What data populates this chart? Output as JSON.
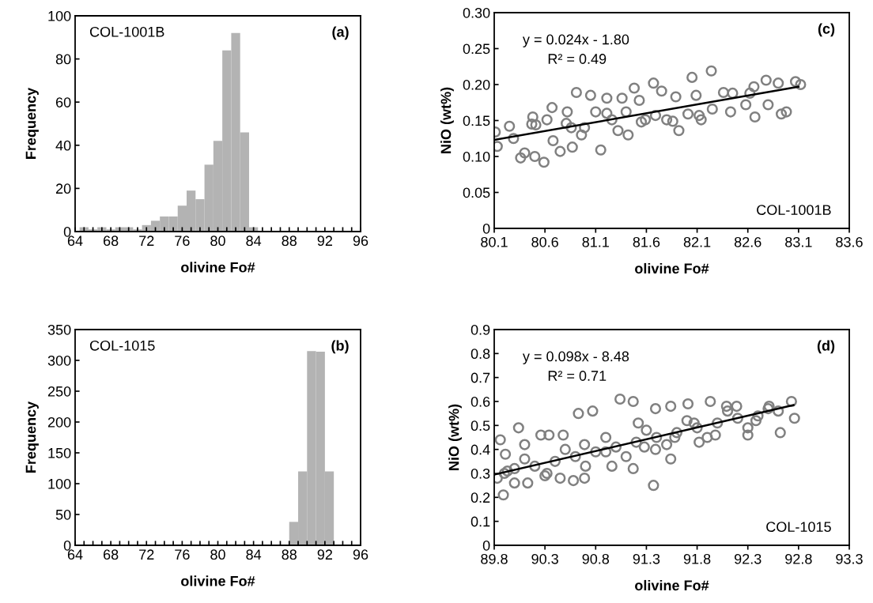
{
  "chart_data": [
    {
      "type": "histogram",
      "xlabel": "olivine Fo#",
      "ylabel": "Frequency",
      "annotations": [
        "COL-1001B",
        "(a)"
      ],
      "color": "#b3b3b3",
      "bins": [
        64.5,
        65.5,
        66.5,
        67.5,
        68.5,
        69.5,
        70.5,
        71.5,
        72.5,
        73.5,
        74.5,
        75.5,
        76.5,
        77.5,
        78.5,
        79.5,
        80.5,
        81.5,
        82.5,
        83.5,
        84.5
      ],
      "values": [
        2,
        1,
        2,
        1,
        2,
        2,
        1,
        3,
        5,
        7,
        7,
        12,
        19,
        15,
        31,
        42,
        84,
        92,
        46,
        2
      ],
      "xlim": [
        64,
        96
      ],
      "ylim": [
        0,
        100
      ],
      "yticks": [
        0,
        20,
        40,
        60,
        80,
        100
      ],
      "xticks": [
        64,
        {
          "value": 65,
          "label": null
        },
        {
          "value": 66,
          "label": null
        },
        {
          "value": 67,
          "label": null
        },
        68,
        {
          "value": 69,
          "label": null
        },
        {
          "value": 70,
          "label": null
        },
        {
          "value": 71,
          "label": null
        },
        72,
        {
          "value": 73,
          "label": null
        },
        {
          "value": 74,
          "label": null
        },
        {
          "value": 75,
          "label": null
        },
        76,
        {
          "value": 77,
          "label": null
        },
        {
          "value": 78,
          "label": null
        },
        {
          "value": 79,
          "label": null
        },
        80,
        {
          "value": 81,
          "label": null
        },
        {
          "value": 82,
          "label": null
        },
        {
          "value": 83,
          "label": null
        },
        84,
        {
          "value": 85,
          "label": null
        },
        {
          "value": 86,
          "label": null
        },
        {
          "value": 87,
          "label": null
        },
        88,
        {
          "value": 89,
          "label": null
        },
        {
          "value": 90,
          "label": null
        },
        {
          "value": 91,
          "label": null
        },
        92,
        {
          "value": 93,
          "label": null
        },
        {
          "value": 94,
          "label": null
        },
        {
          "value": 95,
          "label": null
        },
        96
      ]
    },
    {
      "type": "scatter",
      "xlabel": "olivine Fo#",
      "ylabel": "NiO (wt%)",
      "annotations": [
        "COL-1001B",
        "(c)",
        "y = 0.024x - 1.80",
        "R² = 0.49"
      ],
      "series": [
        {
          "type": "scatter",
          "marker": "circle",
          "color": "#808080",
          "x": [
            80.11,
            80.13,
            80.25,
            80.29,
            80.36,
            80.4,
            80.48,
            80.51,
            80.5,
            80.59,
            80.62,
            80.67,
            80.68,
            80.75,
            80.82,
            80.86,
            80.87,
            80.91,
            80.96,
            81.05,
            81.1,
            81.15,
            81.21,
            81.26,
            81.32,
            81.36,
            81.42,
            81.48,
            81.53,
            81.59,
            81.67,
            81.75,
            81.8,
            81.89,
            81.92,
            82.01,
            82.05,
            82.09,
            82.14,
            82.24,
            82.25,
            82.36,
            82.43,
            82.58,
            82.66,
            82.67,
            82.78,
            82.8,
            82.9,
            82.93,
            82.98,
            83.07,
            83.12,
            80.81,
            80.99,
            81.21,
            81.4,
            81.55,
            81.69,
            81.86,
            82.12,
            82.45,
            82.62,
            80.47
          ],
          "values": [
            0.134,
            0.114,
            0.142,
            0.125,
            0.098,
            0.105,
            0.155,
            0.144,
            0.1,
            0.092,
            0.151,
            0.168,
            0.122,
            0.107,
            0.162,
            0.14,
            0.113,
            0.189,
            0.13,
            0.185,
            0.162,
            0.109,
            0.181,
            0.151,
            0.136,
            0.181,
            0.13,
            0.195,
            0.178,
            0.151,
            0.202,
            0.191,
            0.151,
            0.183,
            0.136,
            0.159,
            0.21,
            0.185,
            0.151,
            0.219,
            0.166,
            0.189,
            0.162,
            0.172,
            0.197,
            0.155,
            0.206,
            0.172,
            0.202,
            0.159,
            0.162,
            0.204,
            0.2,
            0.146,
            0.14,
            0.16,
            0.162,
            0.148,
            0.157,
            0.149,
            0.157,
            0.188,
            0.188,
            0.145
          ]
        },
        {
          "type": "line",
          "color": "#000000",
          "x": [
            80.1,
            83.1
          ],
          "values": [
            0.123,
            0.197
          ]
        }
      ],
      "xlim": [
        80.1,
        83.6
      ],
      "xticks": [
        80.1,
        80.6,
        81.1,
        81.6,
        82.1,
        82.6,
        83.1,
        83.6
      ],
      "ylim": [
        0,
        0.3
      ],
      "yticks": [
        0,
        {
          "value": 0.05,
          "label": "0.05"
        },
        {
          "value": 0.1,
          "label": "0.10"
        },
        {
          "value": 0.15,
          "label": "0.15"
        },
        {
          "value": 0.2,
          "label": "0.20"
        },
        {
          "value": 0.25,
          "label": "0.25"
        },
        {
          "value": 0.3,
          "label": "0.30"
        }
      ]
    },
    {
      "type": "histogram",
      "xlabel": "olivine Fo#",
      "ylabel": "Frequency",
      "annotations": [
        "COL-1015",
        "(b)"
      ],
      "color": "#b3b3b3",
      "bins": [
        88,
        89,
        90,
        91,
        92,
        93
      ],
      "values": [
        38,
        120,
        315,
        314,
        120
      ],
      "xlim": [
        64,
        96
      ],
      "ylim": [
        0,
        350
      ],
      "yticks": [
        0,
        50,
        100,
        150,
        200,
        250,
        300,
        350
      ],
      "xticks": [
        64,
        {
          "value": 65,
          "label": null
        },
        {
          "value": 66,
          "label": null
        },
        {
          "value": 67,
          "label": null
        },
        68,
        {
          "value": 69,
          "label": null
        },
        {
          "value": 70,
          "label": null
        },
        {
          "value": 71,
          "label": null
        },
        72,
        {
          "value": 73,
          "label": null
        },
        {
          "value": 74,
          "label": null
        },
        {
          "value": 75,
          "label": null
        },
        76,
        {
          "value": 77,
          "label": null
        },
        {
          "value": 78,
          "label": null
        },
        {
          "value": 79,
          "label": null
        },
        80,
        {
          "value": 81,
          "label": null
        },
        {
          "value": 82,
          "label": null
        },
        {
          "value": 83,
          "label": null
        },
        84,
        {
          "value": 85,
          "label": null
        },
        {
          "value": 86,
          "label": null
        },
        {
          "value": 87,
          "label": null
        },
        88,
        {
          "value": 89,
          "label": null
        },
        {
          "value": 90,
          "label": null
        },
        {
          "value": 91,
          "label": null
        },
        92,
        {
          "value": 93,
          "label": null
        },
        {
          "value": 94,
          "label": null
        },
        {
          "value": 95,
          "label": null
        },
        96
      ]
    },
    {
      "type": "scatter",
      "xlabel": "olivine Fo#",
      "ylabel": "NiO (wt%)",
      "annotations": [
        "COL-1015",
        "(d)",
        "y = 0.098x - 8.48",
        "R² = 0.71"
      ],
      "series": [
        {
          "type": "scatter",
          "marker": "circle",
          "color": "#808080",
          "x": [
            89.83,
            89.86,
            89.89,
            89.91,
            89.93,
            90.04,
            90.1,
            90.13,
            90.26,
            90.34,
            90.32,
            90.48,
            90.45,
            90.58,
            90.63,
            90.69,
            90.69,
            90.77,
            90.9,
            90.96,
            91.04,
            91.17,
            91.17,
            91.22,
            91.28,
            91.37,
            91.39,
            91.39,
            91.54,
            91.54,
            91.58,
            91.71,
            91.77,
            91.82,
            91.93,
            91.98,
            92.09,
            92.19,
            92.3,
            92.38,
            92.51,
            92.62,
            92.73,
            92.76,
            89.9,
            90.0,
            90.2,
            90.4,
            90.6,
            90.8,
            91.0,
            91.2,
            91.4,
            91.6,
            91.8,
            92.0,
            92.2,
            92.4,
            92.6,
            90.1,
            90.5,
            90.9,
            91.3,
            91.7,
            92.1,
            92.5,
            90.0,
            90.3,
            90.7,
            91.1,
            91.5,
            91.9,
            92.3
          ],
          "values": [
            0.28,
            0.44,
            0.21,
            0.38,
            0.31,
            0.49,
            0.42,
            0.26,
            0.46,
            0.46,
            0.3,
            0.46,
            0.28,
            0.27,
            0.55,
            0.28,
            0.42,
            0.56,
            0.39,
            0.33,
            0.61,
            0.6,
            0.32,
            0.51,
            0.41,
            0.25,
            0.57,
            0.4,
            0.36,
            0.58,
            0.45,
            0.59,
            0.51,
            0.43,
            0.6,
            0.46,
            0.58,
            0.58,
            0.46,
            0.52,
            0.58,
            0.47,
            0.6,
            0.53,
            0.3,
            0.32,
            0.33,
            0.35,
            0.37,
            0.39,
            0.41,
            0.43,
            0.45,
            0.47,
            0.49,
            0.51,
            0.53,
            0.54,
            0.56,
            0.36,
            0.4,
            0.45,
            0.48,
            0.52,
            0.56,
            0.57,
            0.26,
            0.29,
            0.33,
            0.37,
            0.42,
            0.45,
            0.49
          ]
        },
        {
          "type": "line",
          "color": "#000000",
          "x": [
            89.8,
            92.75
          ],
          "values": [
            0.295,
            0.585
          ]
        }
      ],
      "xlim": [
        89.8,
        93.3
      ],
      "xticks": [
        89.8,
        90.3,
        90.8,
        91.3,
        91.8,
        92.3,
        92.8,
        93.3
      ],
      "ylim": [
        0,
        0.9
      ],
      "yticks": [
        0,
        0.1,
        0.2,
        0.3,
        0.4,
        0.5,
        0.6,
        0.7,
        0.8,
        0.9
      ]
    }
  ]
}
